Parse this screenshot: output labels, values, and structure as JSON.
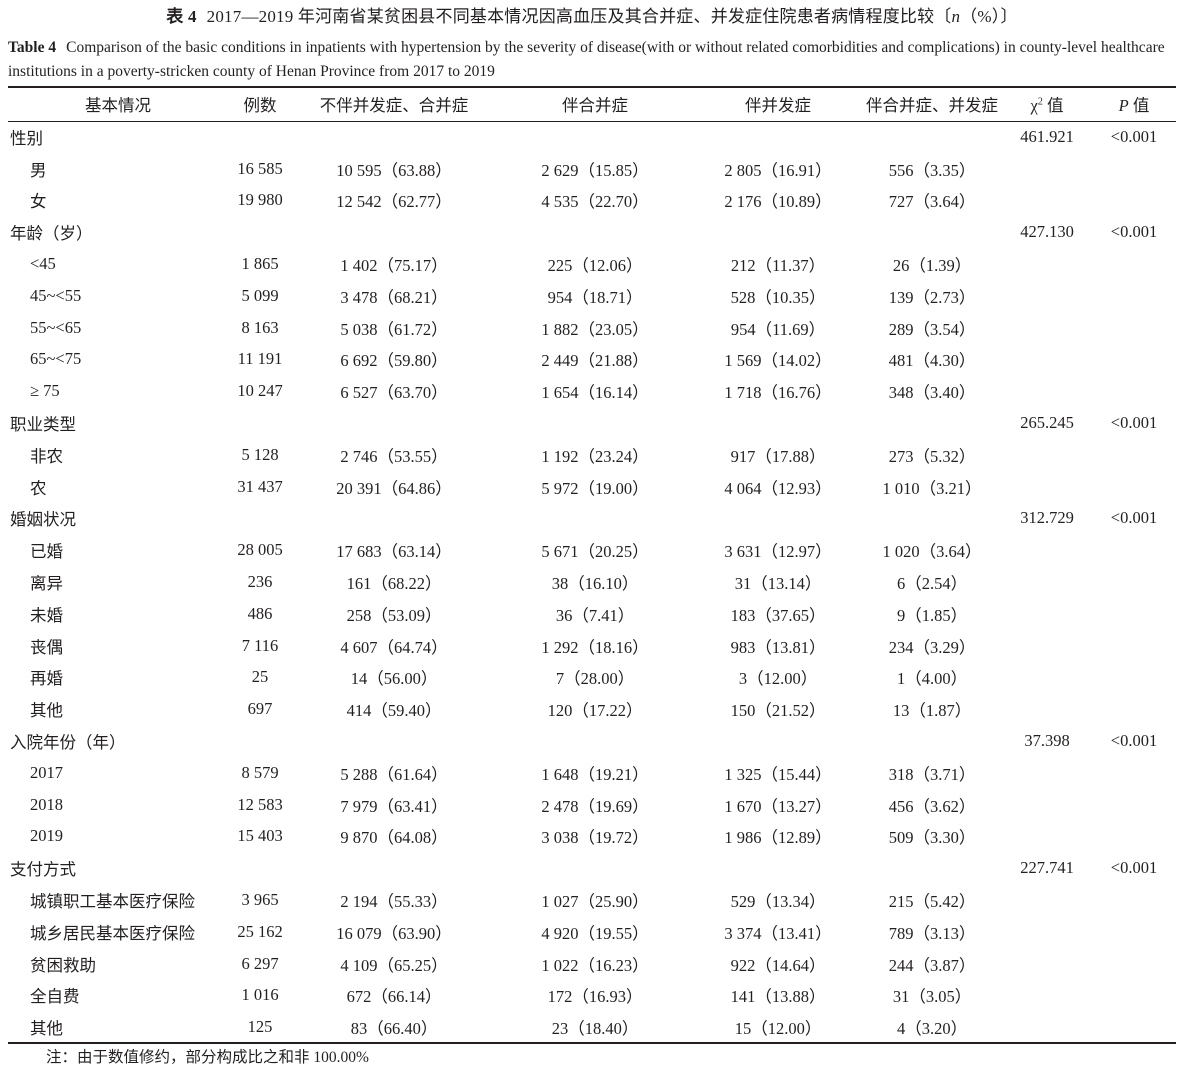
{
  "caption": {
    "cn_label": "表 4",
    "cn_title": "2017—2019 年河南省某贫困县不同基本情况因高血压及其合并症、并发症住院患者病情程度比较〔",
    "cn_unit_italic": "n",
    "cn_unit_rest": "（%）〕",
    "en_label": "Table 4",
    "en_title": "Comparison of the basic conditions in inpatients with hypertension by the severity of disease(with or without related comorbidities and complications) in county-level healthcare institutions in a poverty-stricken county of Henan Province from 2017 to 2019"
  },
  "table": {
    "headers": {
      "basic": "基本情况",
      "cases": "例数",
      "none": "不伴并发症、合并症",
      "comorbid": "伴合并症",
      "complication": "伴并发症",
      "both": "伴合并症、并发症",
      "chi_symbol": "χ",
      "chi_sup": "2",
      "chi_suffix": "值",
      "p_italic": "P",
      "p_suffix": "值"
    },
    "groups": [
      {
        "name": "性别",
        "chi2": "461.921",
        "p": "<0.001",
        "rows": [
          {
            "label": "男",
            "n": "16 585",
            "none": "10 595（63.88）",
            "comorbid": "2 629（15.85）",
            "complication": "2 805（16.91）",
            "both": "556（3.35）"
          },
          {
            "label": "女",
            "n": "19 980",
            "none": "12 542（62.77）",
            "comorbid": "4 535（22.70）",
            "complication": "2 176（10.89）",
            "both": "727（3.64）"
          }
        ]
      },
      {
        "name": "年龄（岁）",
        "chi2": "427.130",
        "p": "<0.001",
        "rows": [
          {
            "label": "<45",
            "n": "1 865",
            "none": "1 402（75.17）",
            "comorbid": "225（12.06）",
            "complication": "212（11.37）",
            "both": "26（1.39）"
          },
          {
            "label": "45~<55",
            "n": "5 099",
            "none": "3 478（68.21）",
            "comorbid": "954（18.71）",
            "complication": "528（10.35）",
            "both": "139（2.73）"
          },
          {
            "label": "55~<65",
            "n": "8 163",
            "none": "5 038（61.72）",
            "comorbid": "1 882（23.05）",
            "complication": "954（11.69）",
            "both": "289（3.54）"
          },
          {
            "label": "65~<75",
            "n": "11 191",
            "none": "6 692（59.80）",
            "comorbid": "2 449（21.88）",
            "complication": "1 569（14.02）",
            "both": "481（4.30）"
          },
          {
            "label": "≥ 75",
            "n": "10 247",
            "none": "6 527（63.70）",
            "comorbid": "1 654（16.14）",
            "complication": "1 718（16.76）",
            "both": "348（3.40）"
          }
        ]
      },
      {
        "name": "职业类型",
        "chi2": "265.245",
        "p": "<0.001",
        "rows": [
          {
            "label": "非农",
            "n": "5 128",
            "none": "2 746（53.55）",
            "comorbid": "1 192（23.24）",
            "complication": "917（17.88）",
            "both": "273（5.32）"
          },
          {
            "label": "农",
            "n": "31 437",
            "none": "20 391（64.86）",
            "comorbid": "5 972（19.00）",
            "complication": "4 064（12.93）",
            "both": "1 010（3.21）"
          }
        ]
      },
      {
        "name": "婚姻状况",
        "chi2": "312.729",
        "p": "<0.001",
        "rows": [
          {
            "label": "已婚",
            "n": "28 005",
            "none": "17 683（63.14）",
            "comorbid": "5 671（20.25）",
            "complication": "3 631（12.97）",
            "both": "1 020（3.64）"
          },
          {
            "label": "离异",
            "n": "236",
            "none": "161（68.22）",
            "comorbid": "38（16.10）",
            "complication": "31（13.14）",
            "both": "6（2.54）"
          },
          {
            "label": "未婚",
            "n": "486",
            "none": "258（53.09）",
            "comorbid": "36（7.41）",
            "complication": "183（37.65）",
            "both": "9（1.85）"
          },
          {
            "label": "丧偶",
            "n": "7 116",
            "none": "4 607（64.74）",
            "comorbid": "1 292（18.16）",
            "complication": "983（13.81）",
            "both": "234（3.29）"
          },
          {
            "label": "再婚",
            "n": "25",
            "none": "14（56.00）",
            "comorbid": "7（28.00）",
            "complication": "3（12.00）",
            "both": "1（4.00）"
          },
          {
            "label": "其他",
            "n": "697",
            "none": "414（59.40）",
            "comorbid": "120（17.22）",
            "complication": "150（21.52）",
            "both": "13（1.87）"
          }
        ]
      },
      {
        "name": "入院年份（年）",
        "chi2": "37.398",
        "p": "<0.001",
        "rows": [
          {
            "label": "2017",
            "n": "8 579",
            "none": "5 288（61.64）",
            "comorbid": "1 648（19.21）",
            "complication": "1 325（15.44）",
            "both": "318（3.71）"
          },
          {
            "label": "2018",
            "n": "12 583",
            "none": "7 979（63.41）",
            "comorbid": "2 478（19.69）",
            "complication": "1 670（13.27）",
            "both": "456（3.62）"
          },
          {
            "label": "2019",
            "n": "15 403",
            "none": "9 870（64.08）",
            "comorbid": "3 038（19.72）",
            "complication": "1 986（12.89）",
            "both": "509（3.30）"
          }
        ]
      },
      {
        "name": "支付方式",
        "chi2": "227.741",
        "p": "<0.001",
        "rows": [
          {
            "label": "城镇职工基本医疗保险",
            "n": "3 965",
            "none": "2 194（55.33）",
            "comorbid": "1 027（25.90）",
            "complication": "529（13.34）",
            "both": "215（5.42）"
          },
          {
            "label": "城乡居民基本医疗保险",
            "n": "25 162",
            "none": "16 079（63.90）",
            "comorbid": "4 920（19.55）",
            "complication": "3 374（13.41）",
            "both": "789（3.13）"
          },
          {
            "label": "贫困救助",
            "n": "6 297",
            "none": "4 109（65.25）",
            "comorbid": "1 022（16.23）",
            "complication": "922（14.64）",
            "both": "244（3.87）"
          },
          {
            "label": "全自费",
            "n": "1 016",
            "none": "672（66.14）",
            "comorbid": "172（16.93）",
            "complication": "141（13.88）",
            "both": "31（3.05）"
          },
          {
            "label": "其他",
            "n": "125",
            "none": "83（66.40）",
            "comorbid": "23（18.40）",
            "complication": "15（12.00）",
            "both": "4（3.20）"
          }
        ]
      }
    ]
  },
  "note": "注：由于数值修约，部分构成比之和非 100.00%"
}
